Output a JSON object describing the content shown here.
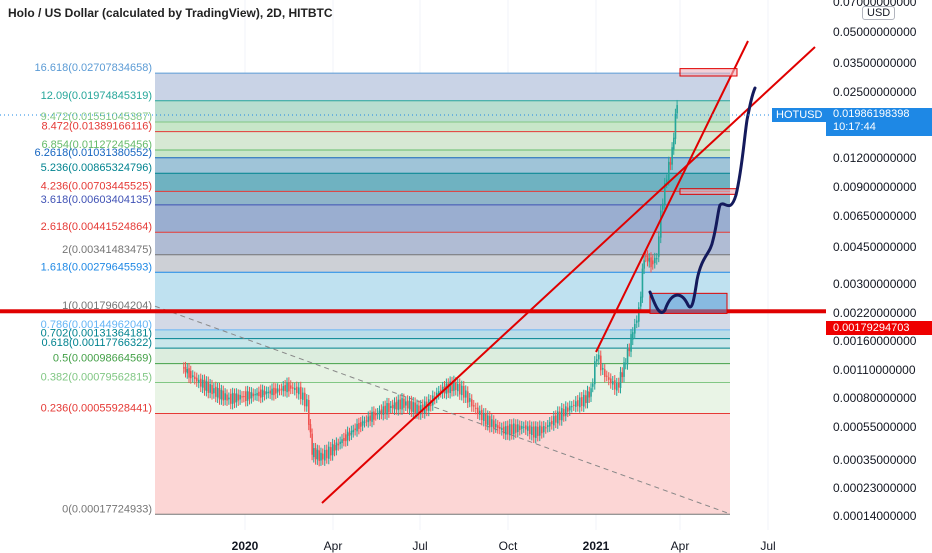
{
  "title": "Holo / US Dollar (calculated by TradingView), 2D, HITBTC",
  "currency_button": "USD",
  "symbol_label": "HOTUSD",
  "last_price": "0.01986198398",
  "countdown": "10:17:44",
  "marked_price": "0.00179294703",
  "chart_data": {
    "type": "candlestick",
    "scale": "log",
    "x_ticks": [
      "2020",
      "Apr",
      "Jul",
      "Oct",
      "2021",
      "Apr",
      "Jul"
    ],
    "y_ticks": [
      "0.07000000000",
      "0.05000000000",
      "0.03500000000",
      "0.02500000000",
      "0.01200000000",
      "0.00900000000",
      "0.00650000000",
      "0.00450000000",
      "0.00300000000",
      "0.00220000000",
      "0.00160000000",
      "0.00110000000",
      "0.00080000000",
      "0.00055000000",
      "0.00035000000",
      "0.00023000000",
      "0.00014000000"
    ],
    "y_range": [
      0.00013,
      0.075
    ],
    "fib_levels": [
      {
        "label": "16.618(0.02707834658)",
        "ratio": 16.618,
        "price": 0.02707834658,
        "color": "#5b9bd5"
      },
      {
        "label": "12.09(0.01974845319)",
        "ratio": 12.09,
        "price": 0.01974845319,
        "color": "#26a69a"
      },
      {
        "label": "9.472(0.01551045387)",
        "ratio": 9.472,
        "price": 0.01551045387,
        "color": "#81c784"
      },
      {
        "label": "8.472(0.01389166116)",
        "ratio": 8.472,
        "price": 0.01389166116,
        "color": "#e53935"
      },
      {
        "label": "6.854(0.01127245456)",
        "ratio": 6.854,
        "price": 0.01127245456,
        "color": "#66bb6a"
      },
      {
        "label": "6.2618(0.01031380552)",
        "ratio": 6.2618,
        "price": 0.01031380552,
        "color": "#1565c0"
      },
      {
        "label": "5.236(0.00865324796)",
        "ratio": 5.236,
        "price": 0.00865324796,
        "color": "#00838f"
      },
      {
        "label": "4.236(0.00703445525)",
        "ratio": 4.236,
        "price": 0.00703445525,
        "color": "#e53935"
      },
      {
        "label": "3.618(0.00603404135)",
        "ratio": 3.618,
        "price": 0.00603404135,
        "color": "#3f51b5"
      },
      {
        "label": "2.618(0.00441524864)",
        "ratio": 2.618,
        "price": 0.00441524864,
        "color": "#e53935"
      },
      {
        "label": "2(0.00341483475)",
        "ratio": 2,
        "price": 0.00341483475,
        "color": "#757575"
      },
      {
        "label": "1.618(0.00279645593)",
        "ratio": 1.618,
        "price": 0.00279645593,
        "color": "#1e88e5"
      },
      {
        "label": "1(0.00179604204)",
        "ratio": 1,
        "price": 0.00179604204,
        "color": "#757575"
      },
      {
        "label": "0.786(0.00144962040)",
        "ratio": 0.786,
        "price": 0.0014496204,
        "color": "#64b5f6"
      },
      {
        "label": "0.702(0.00131364181)",
        "ratio": 0.702,
        "price": 0.00131364181,
        "color": "#00838f"
      },
      {
        "label": "0.618(0.00117766322)",
        "ratio": 0.618,
        "price": 0.00117766322,
        "color": "#00838f"
      },
      {
        "label": "0.5(0.00098664569)",
        "ratio": 0.5,
        "price": 0.00098664569,
        "color": "#43a047"
      },
      {
        "label": "0.382(0.00079562815)",
        "ratio": 0.382,
        "price": 0.00079562815,
        "color": "#81c784"
      },
      {
        "label": "0.236(0.00055928441)",
        "ratio": 0.236,
        "price": 0.00055928441,
        "color": "#e53935"
      },
      {
        "label": "0(0.00017724933)",
        "ratio": 0,
        "price": 0.00017724933,
        "color": "#757575"
      }
    ],
    "fib_fill_colors": [
      "#c9d3e6",
      "#b9ddd0",
      "#c8e6c9",
      "#d7e8d4",
      "#c8e6c9",
      "#9fc4d8",
      "#6fb2c1",
      "#8fb5c9",
      "#9aaed0",
      "#b0bcd4",
      "#cdd0d6",
      "#bfe1f0",
      "#d3d9e6",
      "#bcdde8",
      "#c8e6ea",
      "#dcedde",
      "#e6f2e3",
      "#e9f4e6",
      "#fcd6d5"
    ],
    "anchor_price": 0.00017724933
  }
}
